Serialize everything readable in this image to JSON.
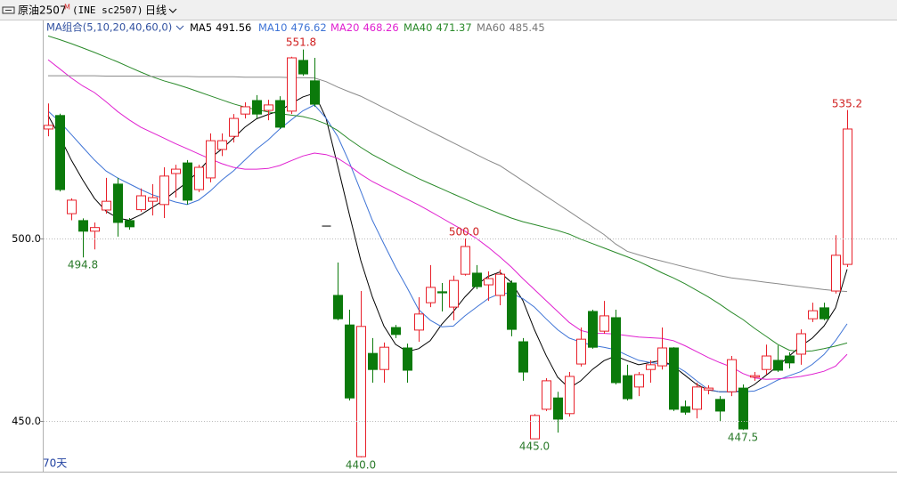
{
  "chart_data": {
    "type": "candlestick",
    "symbol": "原油2507",
    "symbol_mark": "M",
    "code": "(INE sc2507)",
    "period": "日线",
    "ma_group": "MA组合(5,10,20,40,60,0)",
    "days_label": "70天",
    "up_color": "#e8202a",
    "down_color": "#0b7a0b",
    "ylim": [
      436.1,
      555.6
    ],
    "yticks": [
      {
        "value": 450,
        "label": "450.0"
      },
      {
        "value": 500,
        "label": "500.0"
      }
    ],
    "grid": true,
    "open": [
      530.0,
      533.7,
      506.8,
      504.9,
      502.0,
      507.8,
      514.9,
      504.9,
      507.9,
      510.2,
      509.3,
      517.8,
      520.7,
      513.4,
      516.6,
      524.4,
      528.0,
      534.1,
      537.8,
      535.1,
      537.8,
      534.9,
      548.8,
      543.2,
      503.4,
      484.4,
      476.3,
      440.2,
      468.5,
      464.1,
      475.6,
      470.0,
      474.9,
      482.4,
      485.4,
      481.2,
      490.2,
      490.5,
      487.3,
      484.4,
      487.8,
      471.7,
      445.1,
      453.2,
      456.3,
      452.0,
      465.6,
      480.0,
      474.6,
      478.3,
      462.4,
      459.3,
      464.1,
      465.1,
      470.0,
      453.9,
      453.2,
      458.5,
      455.9,
      458.0,
      459.0,
      462.0,
      464.1,
      466.6,
      467.8,
      468.3,
      478.0,
      481.0,
      485.6,
      492.9
    ],
    "high": [
      537.0,
      534.2,
      511.0,
      505.5,
      504.4,
      516.6,
      516.6,
      505.6,
      513.7,
      514.9,
      519.5,
      520.2,
      521.5,
      520.2,
      528.8,
      528.8,
      534.1,
      537.3,
      539.3,
      538.0,
      539.0,
      549.8,
      551.8,
      549.5,
      503.4,
      493.4,
      480.5,
      485.6,
      472.7,
      471.5,
      476.3,
      471.2,
      483.9,
      492.7,
      487.8,
      489.8,
      500.0,
      492.7,
      491.0,
      491.5,
      488.5,
      472.7,
      451.9,
      461.7,
      458.0,
      463.4,
      475.6,
      480.5,
      482.9,
      480.5,
      465.4,
      463.4,
      466.6,
      475.6,
      470.2,
      455.6,
      460.5,
      459.8,
      456.8,
      467.8,
      460.0,
      463.4,
      470.9,
      470.7,
      468.8,
      475.1,
      482.4,
      482.4,
      500.9,
      535.2
    ],
    "low": [
      528.0,
      512.9,
      505.0,
      494.8,
      497.0,
      506.8,
      500.5,
      502.4,
      507.3,
      506.3,
      505.6,
      511.2,
      509.3,
      512.7,
      515.4,
      522.6,
      526.3,
      532.9,
      532.9,
      532.4,
      530.0,
      534.1,
      544.6,
      536.1,
      503.4,
      477.6,
      455.6,
      440.0,
      460.5,
      460.5,
      472.7,
      460.5,
      471.7,
      481.2,
      480.0,
      477.6,
      489.8,
      486.1,
      482.9,
      481.7,
      473.2,
      461.0,
      445.0,
      452.7,
      446.8,
      451.2,
      464.9,
      469.8,
      473.9,
      460.0,
      455.6,
      456.8,
      460.5,
      464.1,
      452.7,
      451.7,
      450.7,
      457.3,
      449.8,
      456.8,
      447.5,
      461.0,
      462.7,
      463.4,
      464.4,
      465.4,
      477.1,
      477.6,
      484.9,
      492.2
    ],
    "close": [
      531.0,
      513.4,
      510.5,
      502.0,
      503.0,
      510.2,
      504.4,
      503.2,
      511.7,
      511.2,
      517.1,
      519.0,
      510.5,
      519.5,
      526.8,
      526.8,
      532.9,
      536.1,
      534.1,
      536.6,
      530.5,
      549.5,
      545.1,
      536.8,
      503.4,
      478.0,
      456.3,
      475.9,
      464.1,
      470.2,
      473.7,
      463.9,
      479.3,
      486.6,
      485.1,
      488.5,
      497.8,
      486.8,
      489.0,
      490.2,
      475.1,
      463.4,
      451.5,
      461.0,
      450.5,
      462.2,
      472.4,
      470.2,
      478.8,
      460.5,
      456.1,
      462.7,
      465.4,
      470.0,
      453.2,
      452.4,
      459.3,
      459.0,
      452.7,
      466.8,
      447.8,
      462.4,
      467.8,
      463.9,
      465.9,
      473.9,
      480.2,
      478.0,
      495.4,
      530.0
    ],
    "series": [
      {
        "name": "MA5",
        "color": "#000000",
        "values": [
          533.7,
          528.0,
          521.5,
          516.0,
          511.0,
          507.5,
          505.6,
          505.0,
          506.5,
          508.5,
          510.5,
          513.0,
          515.4,
          518.5,
          522.0,
          524.5,
          527.5,
          530.5,
          532.8,
          534.0,
          535.0,
          537.0,
          538.8,
          539.8,
          533.0,
          520.0,
          506.8,
          494.0,
          484.0,
          476.0,
          471.0,
          469.0,
          469.8,
          472.0,
          476.5,
          480.0,
          484.0,
          487.3,
          489.6,
          490.8,
          488.0,
          483.0,
          475.0,
          468.0,
          462.0,
          459.0,
          461.0,
          464.1,
          466.5,
          467.8,
          466.5,
          465.4,
          466.0,
          466.6,
          465.0,
          462.5,
          460.0,
          458.5,
          458.0,
          458.0,
          458.2,
          460.0,
          462.5,
          465.0,
          467.8,
          470.5,
          472.7,
          476.0,
          481.0,
          491.56
        ]
      },
      {
        "name": "MA10",
        "color": "#3f74d6",
        "values": [
          534.9,
          532.0,
          528.5,
          525.0,
          521.5,
          518.5,
          516.6,
          515.0,
          513.4,
          512.0,
          511.0,
          510.0,
          509.3,
          510.5,
          513.0,
          516.0,
          518.5,
          521.5,
          524.5,
          527.0,
          530.0,
          532.5,
          535.0,
          536.6,
          533.0,
          528.0,
          521.0,
          513.0,
          505.0,
          498.5,
          492.2,
          486.5,
          480.5,
          477.6,
          475.8,
          476.0,
          478.8,
          481.2,
          483.5,
          484.9,
          485.0,
          483.5,
          481.2,
          478.0,
          475.0,
          472.7,
          471.6,
          470.7,
          470.2,
          469.5,
          468.0,
          466.6,
          466.0,
          465.6,
          465.4,
          463.5,
          461.0,
          458.6,
          458.0,
          458.0,
          458.0,
          458.2,
          459.5,
          461.2,
          462.4,
          463.5,
          465.5,
          468.2,
          472.0,
          476.62
        ]
      },
      {
        "name": "MA20",
        "color": "#e020d0",
        "values": [
          549.0,
          546.5,
          544.0,
          541.8,
          540.0,
          537.5,
          534.8,
          532.5,
          530.5,
          529.0,
          527.5,
          526.0,
          524.6,
          523.2,
          521.8,
          520.5,
          519.5,
          519.0,
          519.0,
          519.2,
          520.0,
          521.3,
          522.6,
          523.4,
          523.0,
          522.0,
          520.0,
          517.6,
          515.6,
          514.0,
          512.4,
          510.8,
          509.2,
          507.4,
          505.6,
          503.8,
          502.0,
          500.0,
          497.6,
          495.0,
          492.2,
          489.0,
          486.0,
          483.0,
          480.0,
          477.0,
          474.8,
          474.0,
          474.0,
          473.8,
          473.4,
          473.0,
          472.8,
          472.6,
          472.0,
          470.6,
          469.0,
          467.4,
          466.0,
          464.8,
          463.0,
          461.8,
          461.4,
          461.5,
          461.8,
          462.2,
          462.8,
          463.6,
          465.0,
          468.26
        ]
      },
      {
        "name": "MA40",
        "color": "#2a8a2a",
        "values": [
          555.5,
          554.5,
          553.4,
          552.2,
          551.0,
          549.7,
          548.4,
          547.0,
          545.6,
          544.3,
          543.2,
          542.3,
          541.3,
          540.2,
          539.1,
          538.0,
          536.9,
          536.0,
          535.3,
          534.7,
          534.2,
          533.8,
          533.4,
          532.6,
          531.4,
          529.6,
          527.2,
          525.0,
          523.0,
          521.3,
          519.6,
          518.0,
          516.4,
          515.0,
          513.6,
          512.2,
          510.8,
          509.4,
          508.1,
          506.8,
          505.6,
          504.6,
          503.8,
          503.0,
          502.2,
          501.2,
          499.8,
          498.6,
          497.4,
          496.2,
          495.0,
          493.7,
          492.2,
          490.6,
          489.2,
          487.6,
          485.8,
          484.0,
          482.0,
          479.8,
          477.8,
          475.4,
          473.2,
          471.0,
          469.4,
          469.0,
          469.2,
          469.8,
          470.5,
          471.37
        ]
      },
      {
        "name": "MA60",
        "color": "#8a8a8a",
        "values": [
          544.6,
          544.6,
          544.6,
          544.6,
          544.6,
          544.5,
          544.5,
          544.5,
          544.5,
          544.4,
          544.4,
          544.4,
          544.4,
          544.3,
          544.3,
          544.3,
          544.3,
          544.2,
          544.2,
          544.2,
          544.2,
          544.1,
          544.1,
          544.0,
          543.0,
          541.5,
          540.2,
          539.0,
          537.4,
          535.8,
          534.2,
          532.6,
          531.0,
          529.4,
          527.8,
          526.2,
          524.6,
          523.0,
          521.4,
          520.0,
          517.9,
          515.8,
          513.7,
          511.6,
          509.5,
          507.4,
          505.3,
          503.2,
          501.1,
          498.5,
          496.5,
          495.5,
          494.6,
          493.8,
          493.0,
          492.2,
          491.4,
          490.6,
          489.8,
          489.2,
          488.8,
          488.4,
          488.0,
          487.6,
          487.2,
          486.8,
          486.4,
          486.0,
          485.7,
          485.45
        ]
      }
    ],
    "annotations": [
      "551.8",
      "494.8",
      "500.0",
      "440.0",
      "445.0",
      "447.5",
      "535.2"
    ]
  }
}
